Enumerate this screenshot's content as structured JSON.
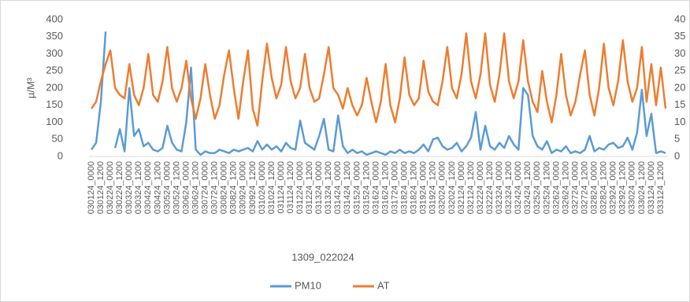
{
  "chart_data": {
    "type": "line",
    "x_label": "1309_022024",
    "y_label": "µ/M³",
    "categories": [
      "030124_0000",
      null,
      "030124_1200",
      null,
      "030224_0000",
      null,
      "030224_1200",
      null,
      "030324_0000",
      null,
      "030324_1200",
      null,
      "030424_0000",
      null,
      "030424_1200",
      null,
      "030524_0000",
      null,
      "030524_1200",
      null,
      "030624_0000",
      null,
      "030624_1200",
      null,
      "030724_0000",
      null,
      "030724_1200",
      null,
      "030824_0000",
      null,
      "030824_1200",
      null,
      "030924_0000",
      null,
      "030924_1200",
      null,
      "031024_0000",
      null,
      "031024_1200",
      null,
      "031124_0000",
      null,
      "031124_1200",
      null,
      "031224_0000",
      null,
      "031224_1200",
      null,
      "031324_0000",
      null,
      "031324_1200",
      null,
      "031424_0000",
      null,
      "031424_1200",
      null,
      "031524_0000",
      null,
      "031524_1200",
      null,
      "031624_0000",
      null,
      "031624_1200",
      null,
      "031724_0000",
      null,
      "031824_0000",
      null,
      "031824_1200",
      null,
      "031924_0000",
      null,
      "031924_1200",
      null,
      "032024_0000",
      null,
      "032024_1200",
      null,
      "032124_0000",
      null,
      "032124_1200",
      null,
      "032224_0000",
      null,
      "032224_1200",
      null,
      "032324_0000",
      null,
      "032324_1200",
      null,
      "032424_0000",
      null,
      "032424_1200",
      null,
      "032524_0000",
      null,
      "032524_1200",
      null,
      "032624_0000",
      null,
      "032624_1200",
      null,
      "032724_0000",
      null,
      "032724_1200",
      null,
      "032824_0000",
      null,
      "032824_1200",
      null,
      "032924_0000",
      null,
      "032924_1200",
      null,
      "033024_0000",
      null,
      "033024_1200",
      null,
      "033124_0000",
      null,
      "033124_1200",
      null
    ],
    "series": [
      {
        "name": "PM10",
        "color": "#5b9bd5",
        "values": [
          20,
          40,
          160,
          365,
          null,
          25,
          80,
          15,
          200,
          60,
          80,
          30,
          40,
          20,
          15,
          25,
          90,
          40,
          20,
          15,
          100,
          260,
          20,
          5,
          15,
          10,
          10,
          20,
          15,
          10,
          20,
          15,
          20,
          25,
          15,
          45,
          20,
          35,
          20,
          30,
          15,
          40,
          25,
          20,
          105,
          40,
          30,
          20,
          60,
          110,
          20,
          15,
          120,
          30,
          10,
          20,
          10,
          15,
          5,
          10,
          15,
          10,
          5,
          15,
          10,
          20,
          10,
          15,
          10,
          20,
          35,
          15,
          50,
          55,
          30,
          20,
          25,
          40,
          15,
          30,
          55,
          130,
          20,
          90,
          30,
          20,
          40,
          25,
          60,
          35,
          20,
          200,
          180,
          60,
          30,
          20,
          45,
          10,
          20,
          15,
          30,
          10,
          15,
          10,
          20,
          60,
          15,
          25,
          20,
          35,
          40,
          25,
          30,
          55,
          20,
          70,
          195,
          60,
          125,
          10,
          15,
          10
        ]
      },
      {
        "name": "AT",
        "color": "#ed7d31",
        "axis": "y2",
        "values": [
          14,
          16,
          22,
          27,
          31,
          20,
          18,
          17,
          27,
          18,
          15,
          20,
          30,
          18,
          16,
          22,
          32,
          20,
          16,
          20,
          28,
          17,
          11,
          17,
          27,
          18,
          11,
          15,
          24,
          31,
          20,
          11,
          22,
          31,
          14,
          9,
          22,
          33,
          23,
          17,
          21,
          32,
          22,
          17,
          20,
          30,
          20,
          16,
          17,
          24,
          32,
          20,
          18,
          14,
          20,
          15,
          12,
          15,
          23,
          16,
          10,
          16,
          27,
          15,
          10,
          17,
          29,
          18,
          15,
          17,
          28,
          19,
          16,
          15,
          22,
          32,
          20,
          17,
          24,
          36,
          22,
          17,
          24,
          36,
          21,
          16,
          24,
          36,
          22,
          17,
          22,
          34,
          22,
          16,
          13,
          25,
          16,
          10,
          18,
          30,
          18,
          12,
          16,
          24,
          31,
          18,
          12,
          20,
          33,
          20,
          15,
          22,
          34,
          22,
          16,
          20,
          32,
          16,
          27,
          15,
          26,
          14
        ]
      }
    ],
    "ylim": [
      0,
      400
    ],
    "yticks": [
      0,
      50,
      100,
      150,
      200,
      250,
      300,
      350,
      400
    ],
    "y2lim": [
      0,
      40
    ],
    "y2ticks": [
      0,
      5,
      10,
      15,
      20,
      25,
      30,
      35,
      40
    ],
    "legend": "bottom"
  }
}
